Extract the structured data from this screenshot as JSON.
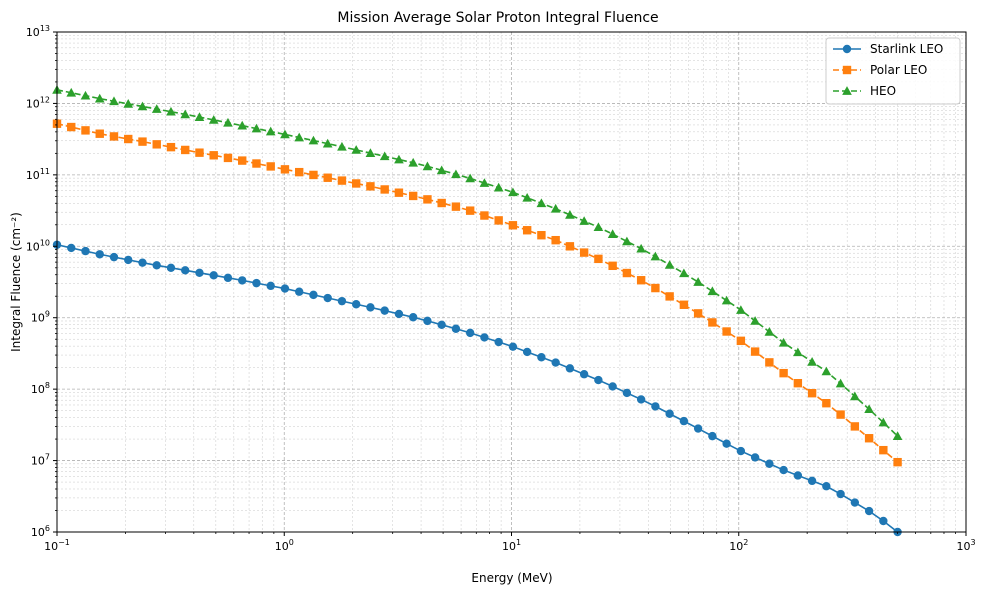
{
  "chart_data": {
    "type": "line",
    "title": "Mission Average Solar Proton Integral Fluence",
    "xlabel": "Energy (MeV)",
    "ylabel": "Integral Fluence (cm⁻²)",
    "xscale": "log",
    "yscale": "log",
    "xlim": [
      0.1,
      1000
    ],
    "ylim": [
      1000000,
      10000000000000
    ],
    "x_ticks": [
      {
        "base": "10",
        "exp": "−1"
      },
      {
        "base": "10",
        "exp": "0"
      },
      {
        "base": "10",
        "exp": "1"
      },
      {
        "base": "10",
        "exp": "2"
      },
      {
        "base": "10",
        "exp": "3"
      }
    ],
    "y_ticks": [
      {
        "base": "10",
        "exp": "6"
      },
      {
        "base": "10",
        "exp": "7"
      },
      {
        "base": "10",
        "exp": "8"
      },
      {
        "base": "10",
        "exp": "9"
      },
      {
        "base": "10",
        "exp": "10"
      },
      {
        "base": "10",
        "exp": "11"
      },
      {
        "base": "10",
        "exp": "12"
      },
      {
        "base": "10",
        "exp": "13"
      }
    ],
    "grid": true,
    "grid_minor": true,
    "legend_position": "top-right",
    "series": [
      {
        "name": "Starlink LEO",
        "color": "#1f77b4",
        "marker": "circle",
        "line_style": "solid",
        "x": [
          0.1,
          0.158,
          0.251,
          0.398,
          0.631,
          1,
          1.585,
          2.512,
          3.981,
          6.31,
          10,
          15.85,
          25.12,
          39.81,
          63.1,
          100,
          158.5,
          251.2,
          398.1,
          500
        ],
        "y": [
          10500000000,
          7600000000,
          5700000000,
          4400000000,
          3400000000,
          2570000000,
          1860000000,
          1350000000,
          960000000,
          640000000,
          400000000,
          232000000,
          127000000,
          65000000,
          30500000,
          14000000,
          7300000,
          4200000,
          1750000,
          1000000
        ]
      },
      {
        "name": "Polar LEO",
        "color": "#ff7f0e",
        "marker": "square",
        "line_style": "dashed",
        "x": [
          0.1,
          0.158,
          0.251,
          0.398,
          0.631,
          1,
          1.585,
          2.512,
          3.981,
          6.31,
          10,
          15.85,
          25.12,
          39.81,
          63.1,
          100,
          158.5,
          251.2,
          398.1,
          500
        ],
        "y": [
          520000000000,
          370000000000,
          283000000000,
          212000000000,
          162000000000,
          120000000000,
          90000000000,
          67000000000,
          48000000000,
          33000000000,
          20000000000,
          12000000000,
          6300000000,
          3000000000,
          1270000000,
          500000000,
          165000000,
          59000000,
          17500000,
          9500000
        ]
      },
      {
        "name": "HEO",
        "color": "#2ca02c",
        "marker": "triangle",
        "line_style": "dashed",
        "x": [
          0.1,
          0.158,
          0.251,
          0.398,
          0.631,
          1,
          1.585,
          2.512,
          3.981,
          6.31,
          10,
          15.85,
          25.12,
          39.81,
          63.1,
          100,
          158.5,
          251.2,
          398.1,
          500
        ],
        "y": [
          1550000000000,
          1150000000000,
          880000000000,
          670000000000,
          500000000000,
          370000000000,
          270000000000,
          195000000000,
          140000000000,
          93000000000,
          58000000000,
          33000000000,
          17500000000,
          8300000000,
          3500000000,
          1350000000,
          440000000,
          165000000,
          44000000,
          22000000
        ]
      }
    ]
  }
}
